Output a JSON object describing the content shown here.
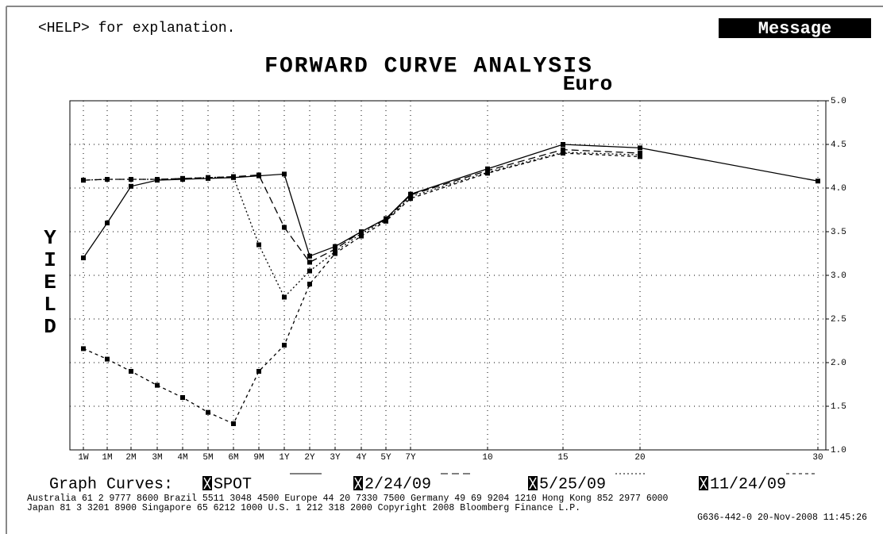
{
  "help": "<HELP> for explanation.",
  "message": "Message",
  "legend_title": "Graph Curves:",
  "footer": [
    "Australia 61 2 9777 8600 Brazil 5511 3048 4500 Europe 44 20 7330 7500 Germany 49 69 9204 1210 Hong Kong 852 2977 6000",
    "Japan 81 3 3201 8900        Singapore 65 6212 1000        U.S. 1 212 318 2000            Copyright 2008 Bloomberg Finance L.P.",
    "G636-442-0 20-Nov-2008 11:45:26"
  ],
  "chart_data": {
    "type": "line",
    "title": "FORWARD CURVE ANALYSIS",
    "subtitle": "Euro",
    "y_label": "YIELD",
    "categories": [
      "1W",
      "1M",
      "2M",
      "3M",
      "4M",
      "5M",
      "6M",
      "9M",
      "1Y",
      "2Y",
      "3Y",
      "4Y",
      "5Y",
      "7Y",
      "10",
      "15",
      "20",
      "30"
    ],
    "series": [
      {
        "name": "SPOT",
        "color": "#000000",
        "dash": "solid",
        "values": [
          3.2,
          3.6,
          4.02,
          4.09,
          4.1,
          4.11,
          4.12,
          4.14,
          4.16,
          3.22,
          3.33,
          3.5,
          3.65,
          3.93,
          4.22,
          4.5,
          4.46,
          4.08
        ]
      },
      {
        "name": "2/24/09",
        "color": "#000000",
        "dash": "long-dash",
        "values": [
          4.09,
          4.1,
          4.1,
          4.1,
          4.11,
          4.12,
          4.13,
          4.15,
          3.55,
          3.15,
          3.3,
          3.5,
          3.64,
          3.92,
          4.2,
          4.44,
          4.4,
          null
        ]
      },
      {
        "name": "5/25/09",
        "color": "#000000",
        "dash": "dotted",
        "values": [
          4.09,
          4.1,
          4.1,
          4.1,
          4.11,
          4.12,
          4.13,
          3.35,
          2.75,
          3.05,
          3.27,
          3.48,
          3.63,
          3.9,
          4.18,
          4.41,
          4.38,
          null
        ]
      },
      {
        "name": "11/24/09",
        "color": "#000000",
        "dash": "short-dash",
        "values": [
          2.16,
          2.04,
          1.9,
          1.74,
          1.6,
          1.43,
          1.3,
          1.9,
          2.2,
          2.9,
          3.25,
          3.45,
          3.62,
          3.88,
          4.17,
          4.4,
          4.36,
          null
        ]
      }
    ],
    "ylim": [
      1,
      5
    ],
    "yticks": [
      {
        "value": 1,
        "label": "1.0"
      },
      {
        "value": 1.5,
        "label": "1.5"
      },
      {
        "value": 2,
        "label": "2.0"
      },
      {
        "value": 2.5,
        "label": "2.5"
      },
      {
        "value": 3,
        "label": "3.0"
      },
      {
        "value": 3.5,
        "label": "3.5"
      },
      {
        "value": 4,
        "label": "4.0"
      },
      {
        "value": 4.5,
        "label": "4.5"
      },
      {
        "value": 5,
        "label": "5.0"
      }
    ],
    "grid": true
  }
}
